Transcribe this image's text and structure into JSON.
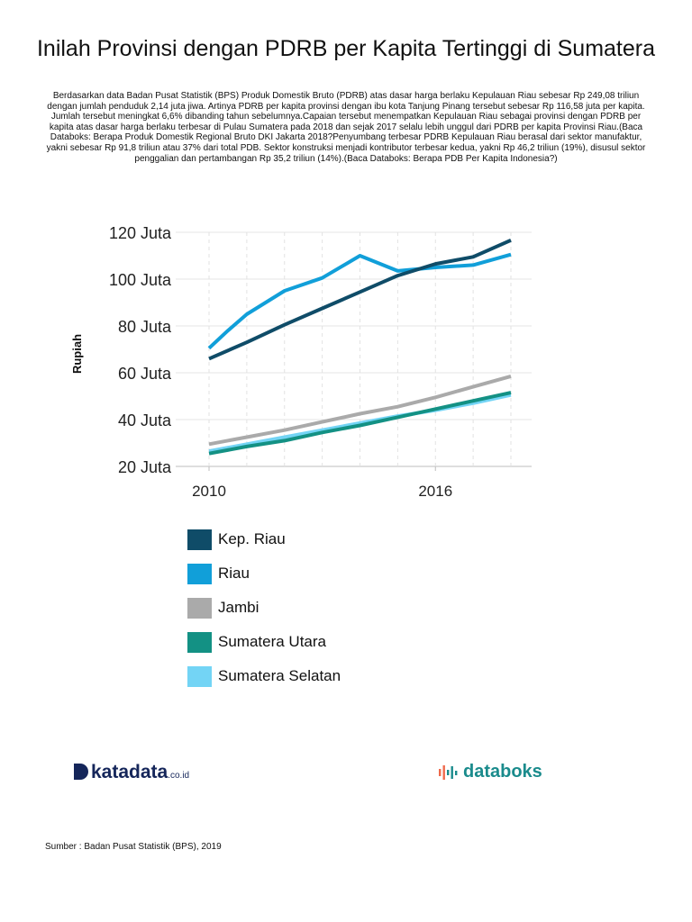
{
  "header": {
    "title": "Inilah Provinsi dengan PDRB per Kapita Tertinggi di Sumatera",
    "description": "Berdasarkan data Badan Pusat Statistik (BPS) Produk Domestik Bruto (PDRB) atas dasar harga berlaku Kepulauan Riau sebesar Rp 249,08 triliun dengan jumlah penduduk 2,14 juta jiwa. Artinya PDRB per kapita provinsi dengan ibu kota Tanjung Pinang tersebut sebesar Rp 116,58 juta per kapita. Jumlah tersebut meningkat 6,6% dibanding tahun sebelumnya.Capaian tersebut menempatkan Kepulauan Riau sebagai provinsi dengan PDRB per kapita atas dasar harga berlaku terbesar di Pulau Sumatera pada 2018 dan sejak 2017 selalu lebih unggul dari PDRB per kapita Provinsi Riau.(Baca Databoks: Berapa Produk Domestik Regional Bruto DKI Jakarta 2018?Penyumbang terbesar PDRB Kepulauan Riau berasal dari sektor manufaktur, yakni sebesar Rp 91,8 triliun atau 37% dari total PDB. Sektor konstruksi menjadi kontributor terbesar kedua, yakni Rp 46,2 triliun (19%), disusul sektor penggalian dan pertambangan Rp 35,2  triliun (14%).(Baca Databoks: Berapa PDB Per Kapita Indonesia?)"
  },
  "chart_data": {
    "type": "line",
    "title": "Inilah Provinsi dengan PDRB per Kapita Tertinggi di Sumatera",
    "xlabel": "",
    "ylabel": "Rupiah",
    "x": [
      2010,
      2011,
      2012,
      2013,
      2014,
      2015,
      2016,
      2017,
      2018
    ],
    "x_ticks": [
      2010,
      2016
    ],
    "x_tick_labels": [
      "2010",
      "2016"
    ],
    "xlim": [
      2010,
      2018
    ],
    "ylim": [
      20,
      120
    ],
    "y_ticks": [
      20,
      40,
      60,
      80,
      100,
      120
    ],
    "y_tick_labels": [
      "20 Juta",
      "40 Juta",
      "60 Juta",
      "80 Juta",
      "100 Juta",
      "120 Juta"
    ],
    "grid": true,
    "series": [
      {
        "name": "Kep. Riau",
        "color": "#0f4c68",
        "x": [
          2010,
          2011,
          2012,
          2013,
          2014,
          2015,
          2016,
          2017,
          2018
        ],
        "values": [
          66,
          73,
          80.5,
          87.5,
          94.5,
          101.5,
          106.5,
          109.5,
          116.6
        ]
      },
      {
        "name": "Riau",
        "color": "#119fd9",
        "x": [
          2010,
          2010.5,
          2011,
          2012,
          2013,
          2014,
          2015,
          2016,
          2017,
          2018
        ],
        "values": [
          70.5,
          78,
          85,
          95,
          100.5,
          110,
          103.5,
          105,
          106,
          110.5
        ]
      },
      {
        "name": "Jambi",
        "color": "#aaaaaa",
        "x": [
          2010,
          2011,
          2012,
          2013,
          2014,
          2015,
          2016,
          2017,
          2018
        ],
        "values": [
          29.5,
          32.5,
          35.5,
          39,
          42.5,
          45.5,
          49.5,
          54,
          58.5
        ]
      },
      {
        "name": "Sumatera Utara",
        "color": "#139184",
        "x": [
          2010,
          2011,
          2012,
          2013,
          2014,
          2015,
          2016,
          2017,
          2018
        ],
        "values": [
          25.5,
          28.5,
          31,
          34.5,
          37.5,
          41,
          44.5,
          48,
          51.5
        ]
      },
      {
        "name": "Sumatera Selatan",
        "color": "#73d4f5",
        "x": [
          2010,
          2011,
          2012,
          2013,
          2014,
          2015,
          2016,
          2017,
          2018
        ],
        "values": [
          26.5,
          29.5,
          32.5,
          35.5,
          38.5,
          41.5,
          44,
          47,
          50.5
        ]
      }
    ]
  },
  "branding": {
    "katadata_name": "katadata",
    "katadata_suffix": ".co.id",
    "databoks_name": "databoks"
  },
  "footer": {
    "source": "Sumber : Badan Pusat Statistik (BPS), 2019"
  }
}
